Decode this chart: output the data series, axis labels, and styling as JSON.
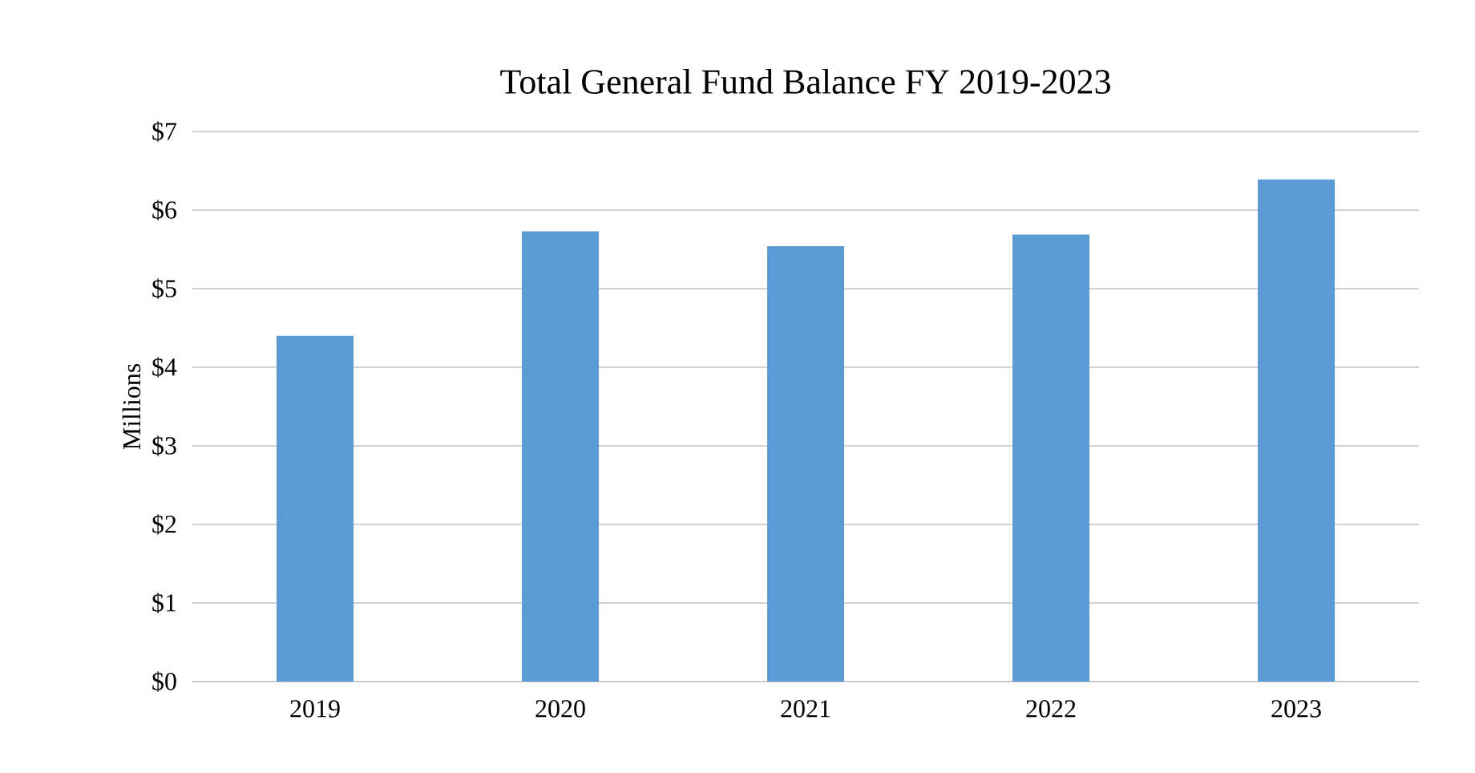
{
  "chart_data": {
    "type": "bar",
    "title": "Total General Fund Balance FY 2019-2023",
    "ylabel": "Millions",
    "categories": [
      "2019",
      "2020",
      "2021",
      "2022",
      "2023"
    ],
    "values": [
      4.4,
      5.73,
      5.54,
      5.69,
      6.39
    ],
    "color": "#5b9bd5",
    "ylim": [
      0,
      7
    ],
    "yticks": [
      {
        "value": 0,
        "label": "$0"
      },
      {
        "value": 1,
        "label": "$1"
      },
      {
        "value": 2,
        "label": "$2"
      },
      {
        "value": 3,
        "label": "$3"
      },
      {
        "value": 4,
        "label": "$4"
      },
      {
        "value": 5,
        "label": "$5"
      },
      {
        "value": 6,
        "label": "$6"
      },
      {
        "value": 7,
        "label": "$7"
      }
    ],
    "grid": "y"
  }
}
